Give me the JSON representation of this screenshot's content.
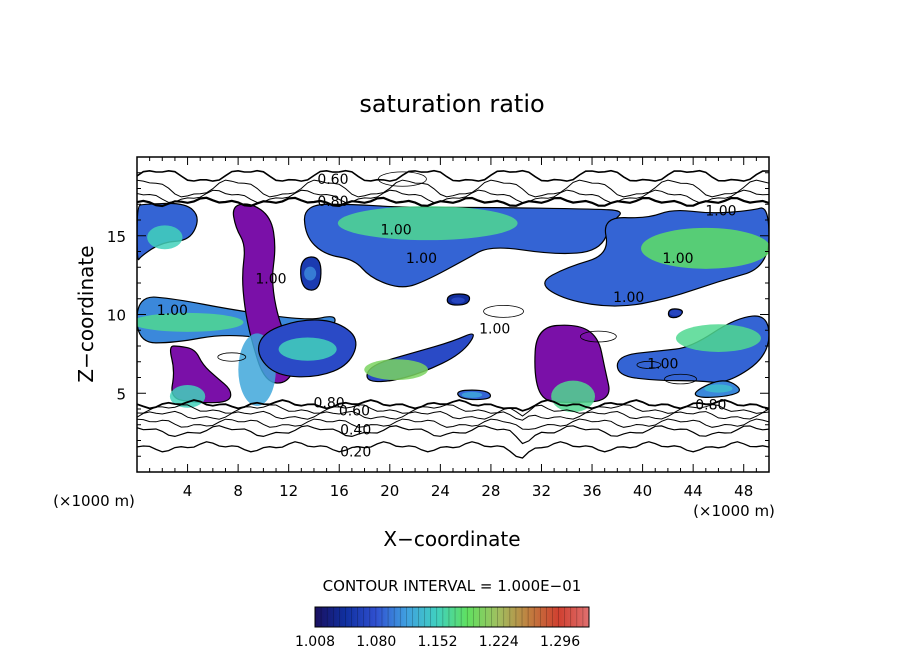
{
  "chart_data": {
    "type": "heatmap",
    "title": "saturation ratio",
    "xlabel": "X−coordinate",
    "ylabel": "Z−coordinate",
    "x_unit": "(×1000 m)",
    "y_unit": "(×1000 m)",
    "xlim": [
      0,
      50
    ],
    "ylim": [
      0,
      20
    ],
    "x_ticks": [
      4,
      8,
      12,
      16,
      20,
      24,
      28,
      32,
      36,
      40,
      44,
      48
    ],
    "y_ticks": [
      5,
      10,
      15
    ],
    "contour_interval_text": "CONTOUR INTERVAL = 1.000E−01",
    "colorbar_ticks": [
      "1.008",
      "1.080",
      "1.152",
      "1.224",
      "1.296"
    ],
    "colorbar_range": [
      1.008,
      1.33
    ],
    "colors": {
      "colormap": [
        "#1a1060",
        "#1030a0",
        "#3050d0",
        "#40a0e0",
        "#40d0c0",
        "#60e060",
        "#a0c060",
        "#c08040",
        "#d04030",
        "#e07070"
      ],
      "supersat_base": "#7a10a8"
    },
    "contour_labels": [
      {
        "x": 15.5,
        "y": 18.6,
        "text": "0.60"
      },
      {
        "x": 15.5,
        "y": 17.2,
        "text": "0.80"
      },
      {
        "x": 20.5,
        "y": 15.4,
        "text": "1.00"
      },
      {
        "x": 22.5,
        "y": 13.6,
        "text": "1.00"
      },
      {
        "x": 2.8,
        "y": 10.3,
        "text": "1.00"
      },
      {
        "x": 10.6,
        "y": 12.3,
        "text": "1.00"
      },
      {
        "x": 28.3,
        "y": 9.1,
        "text": "1.00"
      },
      {
        "x": 38.9,
        "y": 11.1,
        "text": "1.00"
      },
      {
        "x": 42.8,
        "y": 13.6,
        "text": "1.00"
      },
      {
        "x": 46.2,
        "y": 16.6,
        "text": "1.00"
      },
      {
        "x": 41.6,
        "y": 6.9,
        "text": "1.00"
      },
      {
        "x": 15.2,
        "y": 4.4,
        "text": "0.80"
      },
      {
        "x": 17.2,
        "y": 3.9,
        "text": "0.60"
      },
      {
        "x": 17.3,
        "y": 2.7,
        "text": "0.40"
      },
      {
        "x": 17.3,
        "y": 1.3,
        "text": "0.20"
      },
      {
        "x": 45.4,
        "y": 4.3,
        "text": "0.80"
      }
    ],
    "supersat_regions": [
      {
        "pts": [
          [
            0.5,
            17.0
          ],
          [
            3.8,
            17.1
          ],
          [
            5.0,
            16.2
          ],
          [
            4.2,
            14.7
          ],
          [
            2.0,
            14.6
          ],
          [
            0.3,
            13.7
          ],
          [
            0,
            13.3
          ],
          [
            0,
            16.9
          ]
        ],
        "level": 0.25,
        "core": [
          2.2,
          14.9
        ],
        "core_level": 0.45
      },
      {
        "pts": [
          [
            0,
            11.2
          ],
          [
            3.0,
            11.0
          ],
          [
            7.5,
            10.3
          ],
          [
            13.5,
            9.6
          ],
          [
            15.8,
            10.0
          ],
          [
            15.5,
            9.1
          ],
          [
            12.0,
            8.3
          ],
          [
            7.0,
            8.8
          ],
          [
            3.0,
            8.2
          ],
          [
            0,
            8.2
          ]
        ],
        "level": 0.3,
        "core": [
          4.0,
          9.5
        ],
        "core_level": 0.5
      },
      {
        "pts": [
          [
            2.5,
            8.0
          ],
          [
            3.0,
            6.4
          ],
          [
            2.6,
            4.7
          ],
          [
            4.5,
            4.4
          ],
          [
            7.3,
            4.4
          ],
          [
            7.5,
            5.2
          ],
          [
            6.3,
            6.0
          ],
          [
            5.2,
            6.8
          ],
          [
            4.6,
            7.8
          ],
          [
            3.3,
            8.0
          ]
        ],
        "level": 0.0,
        "core": [
          4.0,
          4.8
        ],
        "core_level": 0.45
      },
      {
        "pts": [
          [
            7.5,
            16.9
          ],
          [
            9.0,
            17.1
          ],
          [
            10.6,
            16.2
          ],
          [
            11.0,
            14.3
          ],
          [
            10.6,
            12.0
          ],
          [
            11.4,
            9.0
          ],
          [
            12.8,
            7.5
          ],
          [
            12.0,
            5.6
          ],
          [
            10.1,
            5.7
          ],
          [
            9.0,
            8.5
          ],
          [
            8.5,
            10.5
          ],
          [
            8.3,
            12.5
          ],
          [
            8.6,
            14.4
          ],
          [
            7.8,
            15.5
          ]
        ],
        "level": 0.0,
        "core": [
          9.5,
          6.5
        ],
        "core_level": 0.35
      },
      {
        "pts": [
          [
            10.0,
            8.9
          ],
          [
            13.0,
            9.7
          ],
          [
            15.7,
            9.6
          ],
          [
            17.6,
            8.5
          ],
          [
            16.8,
            6.8
          ],
          [
            14.3,
            6.0
          ],
          [
            11.0,
            6.1
          ],
          [
            9.4,
            7.5
          ]
        ],
        "level": 0.2,
        "core": [
          13.5,
          7.8
        ],
        "core_level": 0.45
      },
      {
        "pts": [
          [
            13.2,
            17.0
          ],
          [
            17.0,
            17.0
          ],
          [
            21.0,
            16.8
          ],
          [
            28.0,
            16.8
          ],
          [
            36.0,
            16.7
          ],
          [
            38.6,
            16.6
          ],
          [
            37.6,
            15.9
          ],
          [
            36.6,
            14.0
          ],
          [
            33.0,
            13.8
          ],
          [
            28.0,
            14.4
          ],
          [
            26.0,
            13.5
          ],
          [
            23.0,
            12.2
          ],
          [
            21.0,
            11.6
          ],
          [
            18.5,
            12.3
          ],
          [
            17.2,
            13.5
          ],
          [
            14.8,
            13.8
          ],
          [
            13.3,
            15.0
          ]
        ],
        "level": 0.25,
        "core": [
          23.0,
          15.8
        ],
        "core_level": 0.5
      },
      {
        "pts": [
          [
            36.8,
            16.2
          ],
          [
            40.4,
            16.1
          ],
          [
            42.4,
            16.7
          ],
          [
            45.4,
            16.4
          ],
          [
            48.6,
            16.6
          ],
          [
            50,
            16.9
          ],
          [
            50,
            13.0
          ],
          [
            46.0,
            12.1
          ],
          [
            42.0,
            11.0
          ],
          [
            38.0,
            10.4
          ],
          [
            33.9,
            10.9
          ],
          [
            31.7,
            12.0
          ],
          [
            34.0,
            13.0
          ],
          [
            37.4,
            13.8
          ]
        ],
        "level": 0.25,
        "core": [
          45.0,
          14.2
        ],
        "core_level": 0.55
      },
      {
        "pts": [
          [
            18.5,
            6.8
          ],
          [
            22.0,
            7.6
          ],
          [
            25.0,
            8.3
          ],
          [
            27.0,
            9.0
          ],
          [
            25.7,
            7.5
          ],
          [
            22.6,
            6.3
          ],
          [
            19.8,
            5.7
          ],
          [
            18.0,
            5.8
          ]
        ],
        "level": 0.2,
        "core": [
          20.5,
          6.5
        ],
        "core_level": 0.6
      },
      {
        "pts": [
          [
            31.6,
            9.2
          ],
          [
            34.8,
            9.4
          ],
          [
            36.5,
            8.6
          ],
          [
            37.0,
            6.6
          ],
          [
            37.6,
            4.5
          ],
          [
            34.0,
            4.4
          ],
          [
            32.1,
            4.5
          ],
          [
            31.4,
            6.1
          ]
        ],
        "level": 0.0,
        "core": [
          34.5,
          4.8
        ],
        "core_level": 0.5
      },
      {
        "pts": [
          [
            38.0,
            7.4
          ],
          [
            41.4,
            7.7
          ],
          [
            43.8,
            7.9
          ],
          [
            47.4,
            9.8
          ],
          [
            50,
            10.0
          ],
          [
            50,
            7.4
          ],
          [
            46.7,
            5.6
          ],
          [
            44.4,
            5.8
          ],
          [
            41.2,
            5.8
          ],
          [
            38.0,
            6.1
          ]
        ],
        "level": 0.25,
        "core": [
          46.0,
          8.5
        ],
        "core_level": 0.5
      },
      {
        "pts": [
          [
            44.0,
            5.1
          ],
          [
            46.4,
            6.0
          ],
          [
            48.0,
            5.2
          ],
          [
            46.8,
            4.8
          ],
          [
            44.4,
            4.7
          ]
        ],
        "level": 0.3,
        "core": [
          46.0,
          5.3
        ],
        "core_level": 0.4
      },
      {
        "pts": [
          [
            25.2,
            5.2
          ],
          [
            27.8,
            5.2
          ],
          [
            28.1,
            4.6
          ],
          [
            25.6,
            4.6
          ]
        ],
        "level": 0.25,
        "core": [
          26.5,
          4.9
        ],
        "core_level": 0.35
      },
      {
        "pts": [
          [
            24.6,
            11.3
          ],
          [
            26.4,
            11.3
          ],
          [
            26.2,
            10.6
          ],
          [
            24.5,
            10.6
          ]
        ],
        "level": 0.1,
        "core": [
          25.4,
          10.9
        ],
        "core_level": 0.2
      },
      {
        "pts": [
          [
            42.1,
            10.4
          ],
          [
            43.3,
            10.3
          ],
          [
            42.9,
            9.8
          ],
          [
            42.0,
            9.8
          ]
        ],
        "level": 0.1,
        "core": [
          42.6,
          10.1
        ],
        "core_level": 0.2
      },
      {
        "pts": [
          [
            12.9,
            13.6
          ],
          [
            14.6,
            13.7
          ],
          [
            14.5,
            11.5
          ],
          [
            13.0,
            11.6
          ]
        ],
        "level": 0.15,
        "core": [
          13.7,
          12.6
        ],
        "core_level": 0.3
      }
    ]
  }
}
